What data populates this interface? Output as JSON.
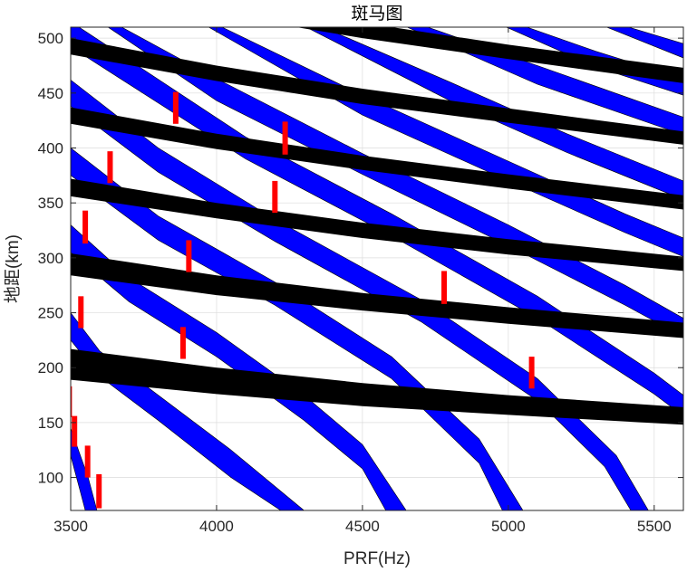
{
  "chart_data": {
    "type": "zebra",
    "title": "斑马图",
    "xlabel": "PRF(Hz)",
    "ylabel": "地距(km)",
    "xlim": [
      3500,
      5600
    ],
    "ylim": [
      70,
      510
    ],
    "xticks": [
      3500,
      4000,
      4500,
      5000,
      5500
    ],
    "yticks": [
      100,
      150,
      200,
      250,
      300,
      350,
      400,
      450,
      500
    ],
    "grid": true,
    "colors": {
      "transmit_band": "#0000ff",
      "nadir_band": "#000000",
      "marker": "#ff0000"
    },
    "nadir_bands": [
      {
        "name": "nadir-1",
        "upper": [
          [
            3500,
            217
          ],
          [
            4000,
            200
          ],
          [
            4500,
            186
          ],
          [
            5000,
            175
          ],
          [
            5600,
            164
          ]
        ],
        "lower": [
          [
            3500,
            189
          ],
          [
            4000,
            176
          ],
          [
            4500,
            165
          ],
          [
            5000,
            157
          ],
          [
            5600,
            148
          ]
        ]
      },
      {
        "name": "nadir-2",
        "upper": [
          [
            3500,
            304
          ],
          [
            4000,
            284
          ],
          [
            4500,
            268
          ],
          [
            5000,
            255
          ],
          [
            5600,
            241
          ]
        ],
        "lower": [
          [
            3500,
            284
          ],
          [
            4000,
            266
          ],
          [
            4500,
            252
          ],
          [
            5000,
            240
          ],
          [
            5600,
            227
          ]
        ]
      },
      {
        "name": "nadir-3",
        "upper": [
          [
            3500,
            372
          ],
          [
            4000,
            350
          ],
          [
            4500,
            332
          ],
          [
            5000,
            317
          ],
          [
            5600,
            301
          ]
        ],
        "lower": [
          [
            3500,
            356
          ],
          [
            4000,
            336
          ],
          [
            4500,
            318
          ],
          [
            5000,
            303
          ],
          [
            5600,
            288
          ]
        ]
      },
      {
        "name": "nadir-4",
        "upper": [
          [
            3500,
            437
          ],
          [
            4000,
            413
          ],
          [
            4500,
            393
          ],
          [
            5000,
            376
          ],
          [
            5600,
            357
          ]
        ],
        "lower": [
          [
            3500,
            422
          ],
          [
            4000,
            399
          ],
          [
            4500,
            380
          ],
          [
            5000,
            363
          ],
          [
            5600,
            344
          ]
        ]
      },
      {
        "name": "nadir-5",
        "upper": [
          [
            3500,
            500
          ],
          [
            4000,
            475
          ],
          [
            4500,
            454
          ],
          [
            5000,
            436
          ],
          [
            5600,
            415
          ]
        ],
        "lower": [
          [
            3500,
            485
          ],
          [
            4000,
            461
          ],
          [
            4500,
            440
          ],
          [
            5000,
            423
          ],
          [
            5600,
            403
          ]
        ]
      },
      {
        "name": "nadir-6",
        "upper": [
          [
            3500,
            560
          ],
          [
            4000,
            536
          ],
          [
            4500,
            514
          ],
          [
            5000,
            494
          ],
          [
            5600,
            473
          ]
        ],
        "lower": [
          [
            3500,
            546
          ],
          [
            4000,
            522
          ],
          [
            4500,
            500
          ],
          [
            5000,
            481
          ],
          [
            5600,
            459
          ]
        ]
      }
    ],
    "transmit_bands": [
      {
        "name": "transmit-1",
        "upper": [
          [
            3500,
            145
          ],
          [
            3520,
            130
          ],
          [
            3560,
            100
          ],
          [
            3590,
            70
          ]
        ],
        "lower": [
          [
            3500,
            120
          ],
          [
            3510,
            110
          ],
          [
            3530,
            90
          ],
          [
            3550,
            70
          ]
        ]
      },
      {
        "name": "transmit-2",
        "upper": [
          [
            3500,
            250
          ],
          [
            3600,
            215
          ],
          [
            3800,
            175
          ],
          [
            4050,
            125
          ],
          [
            4300,
            70
          ]
        ],
        "lower": [
          [
            3500,
            225
          ],
          [
            3600,
            192
          ],
          [
            3800,
            152
          ],
          [
            4050,
            100
          ],
          [
            4220,
            70
          ]
        ]
      },
      {
        "name": "transmit-3",
        "upper": [
          [
            3500,
            330
          ],
          [
            3700,
            282
          ],
          [
            4000,
            232
          ],
          [
            4300,
            175
          ],
          [
            4500,
            130
          ],
          [
            4650,
            70
          ]
        ],
        "lower": [
          [
            3500,
            305
          ],
          [
            3700,
            260
          ],
          [
            4000,
            210
          ],
          [
            4300,
            152
          ],
          [
            4500,
            108
          ],
          [
            4580,
            70
          ]
        ]
      },
      {
        "name": "transmit-4",
        "upper": [
          [
            3500,
            400
          ],
          [
            3800,
            338
          ],
          [
            4200,
            278
          ],
          [
            4600,
            210
          ],
          [
            4900,
            135
          ],
          [
            5050,
            70
          ]
        ],
        "lower": [
          [
            3500,
            375
          ],
          [
            3800,
            316
          ],
          [
            4200,
            257
          ],
          [
            4600,
            190
          ],
          [
            4900,
            113
          ],
          [
            4980,
            70
          ]
        ]
      },
      {
        "name": "transmit-5",
        "upper": [
          [
            3500,
            462
          ],
          [
            3800,
            400
          ],
          [
            4200,
            335
          ],
          [
            4700,
            262
          ],
          [
            5100,
            190
          ],
          [
            5370,
            120
          ],
          [
            5480,
            70
          ]
        ],
        "lower": [
          [
            3500,
            438
          ],
          [
            3800,
            378
          ],
          [
            4200,
            315
          ],
          [
            4700,
            242
          ],
          [
            5100,
            170
          ],
          [
            5330,
            110
          ],
          [
            5420,
            70
          ]
        ]
      },
      {
        "name": "transmit-6",
        "upper": [
          [
            3500,
            515
          ],
          [
            3700,
            480
          ],
          [
            4100,
            410
          ],
          [
            4600,
            340
          ],
          [
            5100,
            265
          ],
          [
            5500,
            195
          ],
          [
            5600,
            175
          ]
        ],
        "lower": [
          [
            3500,
            492
          ],
          [
            3700,
            458
          ],
          [
            4100,
            390
          ],
          [
            4600,
            320
          ],
          [
            5100,
            245
          ],
          [
            5500,
            176
          ],
          [
            5600,
            156
          ]
        ]
      },
      {
        "name": "transmit-7",
        "upper": [
          [
            3640,
            515
          ],
          [
            4000,
            463
          ],
          [
            4500,
            395
          ],
          [
            5000,
            330
          ],
          [
            5400,
            275
          ],
          [
            5600,
            245
          ]
        ],
        "lower": [
          [
            3600,
            515
          ],
          [
            4000,
            443
          ],
          [
            4500,
            376
          ],
          [
            5000,
            311
          ],
          [
            5400,
            257
          ],
          [
            5600,
            228
          ]
        ]
      },
      {
        "name": "transmit-8",
        "upper": [
          [
            3980,
            515
          ],
          [
            4500,
            448
          ],
          [
            5000,
            388
          ],
          [
            5400,
            340
          ],
          [
            5600,
            318
          ]
        ],
        "lower": [
          [
            3940,
            515
          ],
          [
            4500,
            430
          ],
          [
            5000,
            370
          ],
          [
            5400,
            323
          ],
          [
            5600,
            301
          ]
        ]
      },
      {
        "name": "transmit-9",
        "upper": [
          [
            4320,
            515
          ],
          [
            4800,
            460
          ],
          [
            5200,
            413
          ],
          [
            5600,
            370
          ]
        ],
        "lower": [
          [
            4270,
            515
          ],
          [
            4800,
            443
          ],
          [
            5200,
            396
          ],
          [
            5600,
            353
          ]
        ]
      },
      {
        "name": "transmit-10",
        "upper": [
          [
            4670,
            515
          ],
          [
            5100,
            475
          ],
          [
            5600,
            428
          ]
        ],
        "lower": [
          [
            4610,
            515
          ],
          [
            5100,
            458
          ],
          [
            5600,
            412
          ]
        ]
      },
      {
        "name": "transmit-11",
        "upper": [
          [
            5010,
            515
          ],
          [
            5300,
            488
          ],
          [
            5600,
            463
          ]
        ],
        "lower": [
          [
            4950,
            515
          ],
          [
            5300,
            474
          ],
          [
            5600,
            448
          ]
        ]
      },
      {
        "name": "transmit-12",
        "upper": [
          [
            5350,
            515
          ],
          [
            5600,
            495
          ]
        ],
        "lower": [
          [
            5290,
            515
          ],
          [
            5600,
            482
          ]
        ]
      }
    ],
    "markers": [
      {
        "prf": 3495,
        "range_min": 155,
        "range_max": 183
      },
      {
        "prf": 3513,
        "range_min": 128,
        "range_max": 156
      },
      {
        "prf": 3558,
        "range_min": 100,
        "range_max": 129
      },
      {
        "prf": 3597,
        "range_min": 72,
        "range_max": 103
      },
      {
        "prf": 3535,
        "range_min": 236,
        "range_max": 265
      },
      {
        "prf": 3550,
        "range_min": 313,
        "range_max": 343
      },
      {
        "prf": 3635,
        "range_min": 368,
        "range_max": 397
      },
      {
        "prf": 3860,
        "range_min": 422,
        "range_max": 451
      },
      {
        "prf": 3885,
        "range_min": 208,
        "range_max": 237
      },
      {
        "prf": 3905,
        "range_min": 287,
        "range_max": 316
      },
      {
        "prf": 4200,
        "range_min": 341,
        "range_max": 370
      },
      {
        "prf": 4235,
        "range_min": 394,
        "range_max": 424
      },
      {
        "prf": 4780,
        "range_min": 258,
        "range_max": 288
      },
      {
        "prf": 5080,
        "range_min": 181,
        "range_max": 210
      }
    ]
  }
}
